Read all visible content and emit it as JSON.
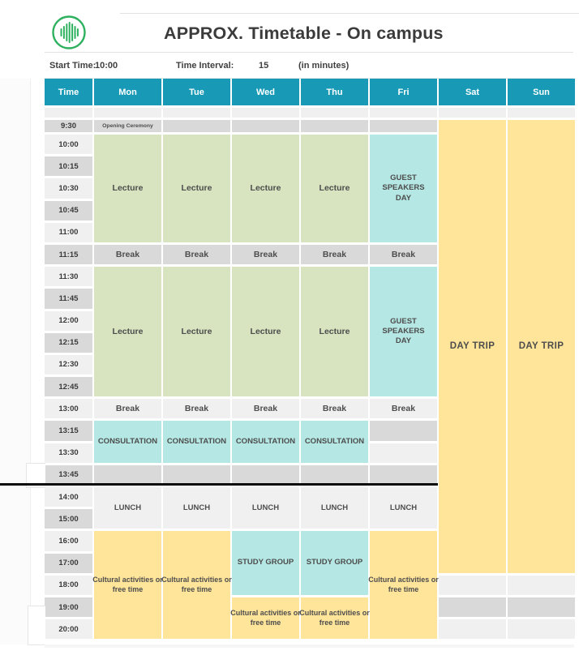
{
  "page": {
    "title": "APPROX. Timetable - On campus"
  },
  "logo": {
    "icon": "equalizer-logo",
    "color": "#2db15e"
  },
  "settings": {
    "start_time_label": "Start Time:",
    "start_time_value": "10:00",
    "interval_label": "Time Interval:",
    "interval_value": "15",
    "interval_unit": "(in minutes)"
  },
  "colors": {
    "header": "#189ab7",
    "gray": "#d9d9d9",
    "light": "#f0f0f0",
    "green": "#d8e4bf",
    "cyan": "#b5e8e4",
    "yellow": "#ffe59a"
  },
  "timetable": {
    "columns": [
      "Time",
      "Mon",
      "Tue",
      "Wed",
      "Thu",
      "Fri",
      "Sat",
      "Sun"
    ],
    "rows": [
      {
        "time": "9:30",
        "shade": "gray"
      },
      {
        "time": "10:00",
        "shade": "light"
      },
      {
        "time": "10:15",
        "shade": "gray"
      },
      {
        "time": "10:30",
        "shade": "light"
      },
      {
        "time": "10:45",
        "shade": "gray"
      },
      {
        "time": "11:00",
        "shade": "light"
      },
      {
        "time": "11:15",
        "shade": "gray"
      },
      {
        "time": "11:30",
        "shade": "light"
      },
      {
        "time": "11:45",
        "shade": "gray"
      },
      {
        "time": "12:00",
        "shade": "light"
      },
      {
        "time": "12:15",
        "shade": "gray"
      },
      {
        "time": "12:30",
        "shade": "light"
      },
      {
        "time": "12:45",
        "shade": "gray"
      },
      {
        "time": "13:00",
        "shade": "light"
      },
      {
        "time": "13:15",
        "shade": "gray"
      },
      {
        "time": "13:30",
        "shade": "light"
      },
      {
        "time": "13:45",
        "shade": "gray"
      },
      {
        "time": "14:00",
        "shade": "light"
      },
      {
        "time": "15:00",
        "shade": "gray"
      },
      {
        "time": "16:00",
        "shade": "light"
      },
      {
        "time": "17:00",
        "shade": "gray"
      },
      {
        "time": "18:00",
        "shade": "light"
      },
      {
        "time": "19:00",
        "shade": "gray"
      },
      {
        "time": "20:00",
        "shade": "light"
      }
    ],
    "events": [
      {
        "label": "Opening Ceremony",
        "day": "Mon",
        "start": "9:30",
        "span": 1,
        "color": "gray"
      },
      {
        "label": "Lecture",
        "day": "Mon",
        "start": "10:00",
        "span": 5,
        "color": "green"
      },
      {
        "label": "Lecture",
        "day": "Tue",
        "start": "10:00",
        "span": 5,
        "color": "green"
      },
      {
        "label": "Lecture",
        "day": "Wed",
        "start": "10:00",
        "span": 5,
        "color": "green"
      },
      {
        "label": "Lecture",
        "day": "Thu",
        "start": "10:00",
        "span": 5,
        "color": "green"
      },
      {
        "label": "GUEST SPEAKERS DAY",
        "day": "Fri",
        "start": "10:00",
        "span": 5,
        "color": "cyan"
      },
      {
        "label": "Break",
        "day": "Mon",
        "start": "11:15",
        "span": 1,
        "color": "gray"
      },
      {
        "label": "Break",
        "day": "Tue",
        "start": "11:15",
        "span": 1,
        "color": "gray"
      },
      {
        "label": "Break",
        "day": "Wed",
        "start": "11:15",
        "span": 1,
        "color": "gray"
      },
      {
        "label": "Break",
        "day": "Thu",
        "start": "11:15",
        "span": 1,
        "color": "gray"
      },
      {
        "label": "Break",
        "day": "Fri",
        "start": "11:15",
        "span": 1,
        "color": "gray"
      },
      {
        "label": "Lecture",
        "day": "Mon",
        "start": "11:30",
        "span": 6,
        "color": "green"
      },
      {
        "label": "Lecture",
        "day": "Tue",
        "start": "11:30",
        "span": 6,
        "color": "green"
      },
      {
        "label": "Lecture",
        "day": "Wed",
        "start": "11:30",
        "span": 6,
        "color": "green"
      },
      {
        "label": "Lecture",
        "day": "Thu",
        "start": "11:30",
        "span": 6,
        "color": "green"
      },
      {
        "label": "GUEST SPEAKERS DAY",
        "day": "Fri",
        "start": "11:30",
        "span": 6,
        "color": "cyan"
      },
      {
        "label": "Break",
        "day": "Mon",
        "start": "13:00",
        "span": 1,
        "color": "light"
      },
      {
        "label": "Break",
        "day": "Tue",
        "start": "13:00",
        "span": 1,
        "color": "light"
      },
      {
        "label": "Break",
        "day": "Wed",
        "start": "13:00",
        "span": 1,
        "color": "light"
      },
      {
        "label": "Break",
        "day": "Thu",
        "start": "13:00",
        "span": 1,
        "color": "light"
      },
      {
        "label": "Break",
        "day": "Fri",
        "start": "13:00",
        "span": 1,
        "color": "light"
      },
      {
        "label": "CONSULTATION",
        "day": "Mon",
        "start": "13:15",
        "span": 2,
        "color": "cyan"
      },
      {
        "label": "CONSULTATION",
        "day": "Tue",
        "start": "13:15",
        "span": 2,
        "color": "cyan"
      },
      {
        "label": "CONSULTATION",
        "day": "Wed",
        "start": "13:15",
        "span": 2,
        "color": "cyan"
      },
      {
        "label": "CONSULTATION",
        "day": "Thu",
        "start": "13:15",
        "span": 2,
        "color": "cyan"
      },
      {
        "label": "LUNCH",
        "day": "Mon",
        "start": "14:00",
        "span": 2,
        "color": "light"
      },
      {
        "label": "LUNCH",
        "day": "Tue",
        "start": "14:00",
        "span": 2,
        "color": "light"
      },
      {
        "label": "LUNCH",
        "day": "Wed",
        "start": "14:00",
        "span": 2,
        "color": "light"
      },
      {
        "label": "LUNCH",
        "day": "Thu",
        "start": "14:00",
        "span": 2,
        "color": "light"
      },
      {
        "label": "LUNCH",
        "day": "Fri",
        "start": "14:00",
        "span": 2,
        "color": "light"
      },
      {
        "label": "Cultural activities or free time",
        "day": "Mon",
        "start": "16:00",
        "span": 5,
        "color": "yellow"
      },
      {
        "label": "Cultural activities or free time",
        "day": "Tue",
        "start": "16:00",
        "span": 5,
        "color": "yellow"
      },
      {
        "label": "STUDY GROUP",
        "day": "Wed",
        "start": "16:00",
        "span": 3,
        "color": "cyan"
      },
      {
        "label": "STUDY GROUP",
        "day": "Thu",
        "start": "16:00",
        "span": 3,
        "color": "cyan"
      },
      {
        "label": "Cultural activities or free time",
        "day": "Wed",
        "start": "19:00",
        "span": 2,
        "color": "yellow"
      },
      {
        "label": "Cultural activities or free time",
        "day": "Thu",
        "start": "19:00",
        "span": 2,
        "color": "yellow"
      },
      {
        "label": "Cultural activities or free time",
        "day": "Fri",
        "start": "16:00",
        "span": 5,
        "color": "yellow"
      },
      {
        "label": "DAY TRIP",
        "day": "Sat",
        "start": "9:30",
        "span": 21,
        "color": "yellow"
      },
      {
        "label": "DAY TRIP",
        "day": "Sun",
        "start": "9:30",
        "span": 21,
        "color": "yellow"
      }
    ]
  }
}
